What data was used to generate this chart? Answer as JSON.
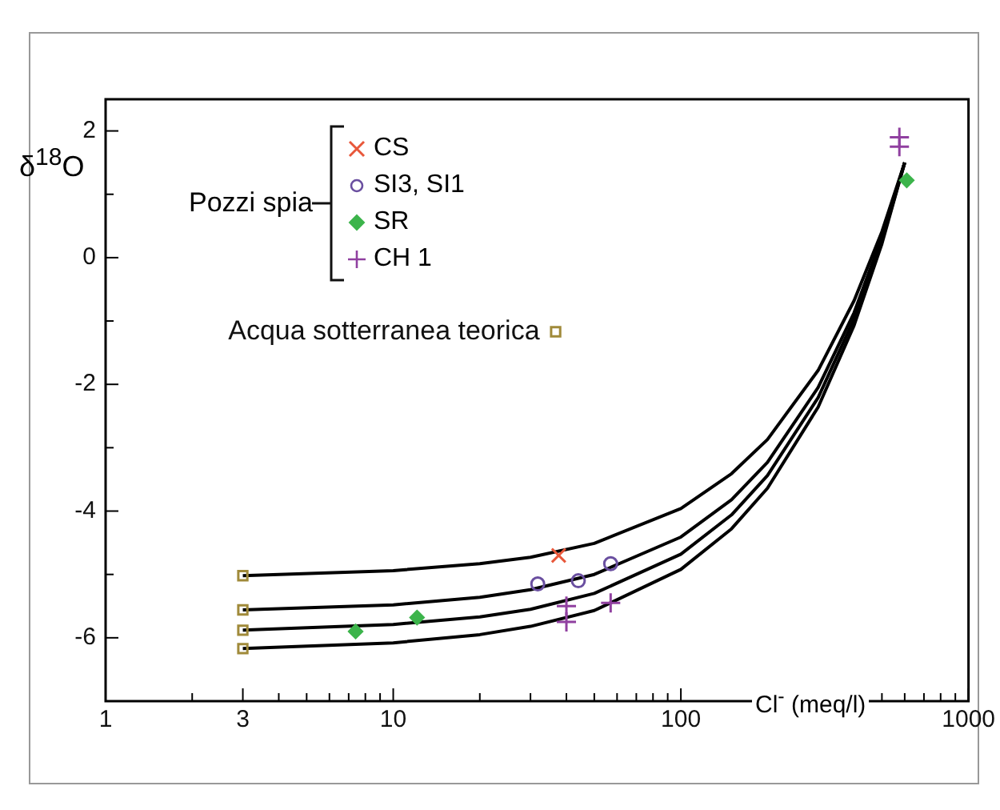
{
  "chart_data": {
    "type": "scatter",
    "ylabel": "δ$^{18}$O",
    "xlabel": "Cl$^{-}$ (meq/l)",
    "legend_title": "Pozzi spia",
    "legend": "top left",
    "log": "x",
    "grid": false,
    "xlim": [
      1,
      1000
    ],
    "ylim": [
      -7,
      2.5
    ],
    "xticks": [
      1,
      {
        "value": 2,
        "label": null
      },
      3,
      {
        "value": 4,
        "label": null
      },
      {
        "value": 5,
        "label": null
      },
      {
        "value": 6,
        "label": null
      },
      {
        "value": 7,
        "label": null
      },
      {
        "value": 8,
        "label": null
      },
      {
        "value": 9,
        "label": null
      },
      10,
      {
        "value": 20,
        "label": null
      },
      {
        "value": 30,
        "label": null
      },
      {
        "value": 40,
        "label": null
      },
      {
        "value": 50,
        "label": null
      },
      {
        "value": 60,
        "label": null
      },
      {
        "value": 70,
        "label": null
      },
      {
        "value": 80,
        "label": null
      },
      {
        "value": 90,
        "label": null
      },
      100,
      {
        "value": 200,
        "label": null
      },
      {
        "value": 300,
        "label": null
      },
      {
        "value": 400,
        "label": null
      },
      {
        "value": 500,
        "label": null
      },
      {
        "value": 600,
        "label": null
      },
      {
        "value": 700,
        "label": null
      },
      {
        "value": 800,
        "label": null
      },
      {
        "value": 900,
        "label": null
      },
      1000
    ],
    "yticks": [
      -6,
      {
        "value": -5,
        "label": null
      },
      -4,
      {
        "value": -3,
        "label": null
      },
      -2,
      {
        "value": -1,
        "label": null
      },
      0,
      {
        "value": 1,
        "label": null
      },
      2
    ],
    "series": [
      {
        "type": "line",
        "color": "#000000",
        "marker": "none",
        "x": [
          3,
          10,
          20,
          30,
          50,
          100,
          150,
          200,
          300,
          400,
          500,
          600
        ],
        "values": [
          -5.02,
          -4.94,
          -4.83,
          -4.73,
          -4.51,
          -3.96,
          -3.41,
          -2.87,
          -1.78,
          -0.68,
          0.41,
          1.5
        ]
      },
      {
        "type": "line",
        "color": "#000000",
        "marker": "none",
        "x": [
          3,
          10,
          20,
          30,
          50,
          100,
          150,
          200,
          300,
          400,
          500,
          600
        ],
        "values": [
          -5.56,
          -5.48,
          -5.36,
          -5.24,
          -5.0,
          -4.41,
          -3.82,
          -3.23,
          -2.05,
          -0.87,
          0.32,
          1.5
        ]
      },
      {
        "type": "line",
        "color": "#000000",
        "marker": "none",
        "x": [
          3,
          10,
          20,
          30,
          50,
          100,
          150,
          200,
          300,
          400,
          500,
          600
        ],
        "values": [
          -5.88,
          -5.79,
          -5.67,
          -5.55,
          -5.3,
          -4.68,
          -4.06,
          -3.44,
          -2.21,
          -0.97,
          0.26,
          1.5
        ]
      },
      {
        "type": "line",
        "color": "#000000",
        "marker": "none",
        "x": [
          3,
          10,
          20,
          30,
          50,
          100,
          150,
          200,
          300,
          400,
          500,
          600
        ],
        "values": [
          -6.17,
          -6.08,
          -5.95,
          -5.82,
          -5.57,
          -4.92,
          -4.28,
          -3.64,
          -2.36,
          -1.07,
          0.22,
          1.5
        ]
      },
      {
        "name": "CS",
        "color": "#e8573a",
        "marker": "cross",
        "x": [
          37.6
        ],
        "values": [
          -4.7
        ]
      },
      {
        "name": "SI3,  SI1",
        "color": "#6a4fa0",
        "marker": "circle",
        "x": [
          31.8,
          44,
          57
        ],
        "values": [
          -5.15,
          -5.1,
          -4.83
        ]
      },
      {
        "name": "SR",
        "color": "#3cb44b",
        "marker": "diamond",
        "x": [
          7.4,
          12.1,
          610
        ],
        "values": [
          -5.9,
          -5.68,
          1.22
        ]
      },
      {
        "name": "CH 1",
        "color": "#9040a0",
        "marker": "plus",
        "x": [
          40,
          40,
          57,
          575,
          575
        ],
        "values": [
          -5.5,
          -5.75,
          -5.45,
          1.9,
          1.75
        ]
      },
      {
        "name": "Acqua sotterranea teorica",
        "color": "#a08a3a",
        "marker": "square",
        "x": [
          3,
          3,
          3,
          3,
          36.7
        ],
        "values": [
          -5.02,
          -5.56,
          -5.88,
          -6.17,
          -1.17
        ]
      }
    ]
  }
}
